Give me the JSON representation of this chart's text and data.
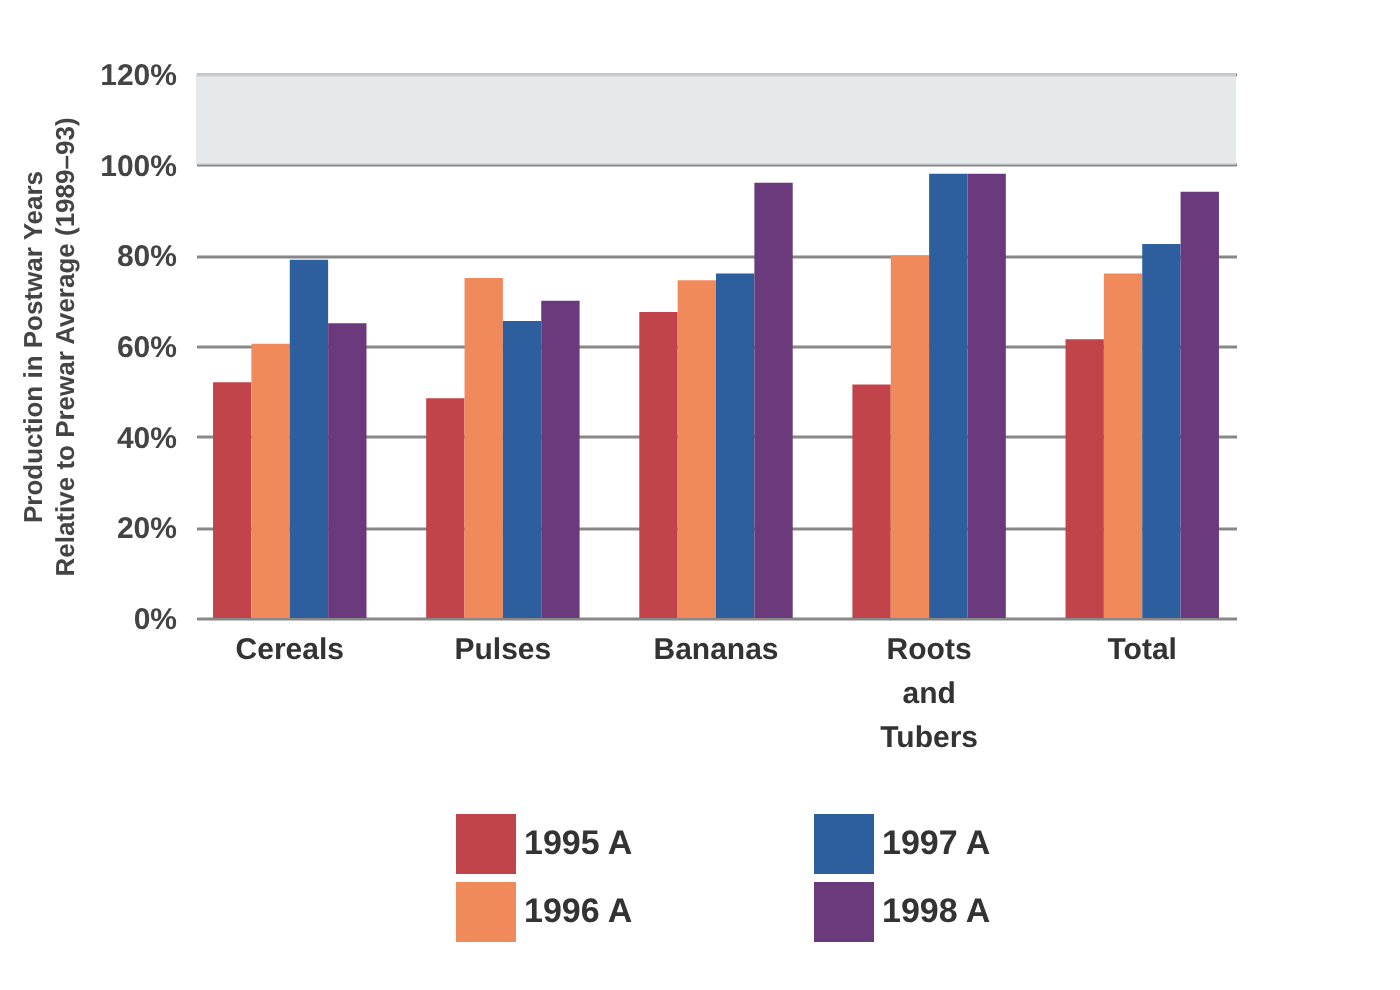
{
  "chart_data": {
    "type": "bar",
    "ylabel": "Production in Postwar Years\nRelative to Prewar Average (1989–93)",
    "categories": [
      "Cereals",
      "Pulses",
      "Bananas",
      "Roots and Tubers",
      "Total"
    ],
    "series": [
      {
        "name": "1995 A",
        "color": "#c0444a",
        "values": [
          52,
          48.5,
          67.5,
          51.5,
          61.5
        ]
      },
      {
        "name": "1996 A",
        "color": "#f08a5a",
        "values": [
          60.5,
          75,
          74.5,
          80,
          76
        ]
      },
      {
        "name": "1997 A",
        "color": "#2d5f9e",
        "values": [
          79,
          65.5,
          76,
          98,
          82.5
        ]
      },
      {
        "name": "1998 A",
        "color": "#6b3a7d",
        "values": [
          65,
          70,
          96,
          98,
          94
        ]
      }
    ],
    "ylim": [
      0,
      120
    ],
    "yticks": [
      {
        "value": 0,
        "label": "0%"
      },
      {
        "value": 20,
        "label": "20%"
      },
      {
        "value": 40,
        "label": "40%"
      },
      {
        "value": 60,
        "label": "60%"
      },
      {
        "value": 80,
        "label": "80%"
      },
      {
        "value": 100,
        "label": "100%"
      },
      {
        "value": 120,
        "label": "120%"
      }
    ],
    "bands": [
      {
        "axis": "y",
        "from": 100,
        "to": 120,
        "color": "#dde1e4"
      }
    ],
    "grid": "y",
    "legend": "bottom"
  }
}
